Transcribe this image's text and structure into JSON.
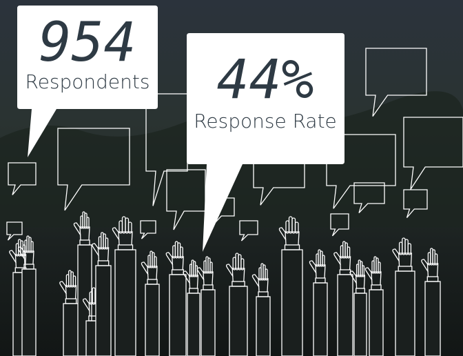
{
  "stats": [
    {
      "value": "954",
      "label": "Respondents"
    },
    {
      "value": "44%",
      "label": "Response Rate"
    }
  ]
}
